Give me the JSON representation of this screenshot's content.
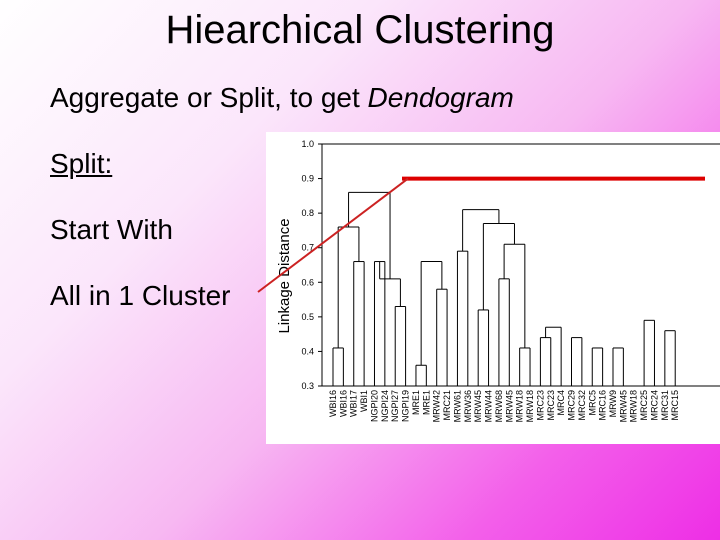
{
  "slide": {
    "title": "Hiearchical Clustering",
    "subtitle_main": "Aggregate or Split, to get ",
    "subtitle_em": "Dendogram",
    "bullets": [
      "Split:",
      "Start With",
      "All in 1 Cluster"
    ]
  },
  "chart_data": {
    "type": "dendrogram",
    "ylabel": "Linkage Distance",
    "ylim": [
      0.3,
      1.0
    ],
    "yticks": [
      1.0,
      0.9,
      0.8,
      0.7,
      0.6,
      0.5,
      0.4,
      0.3
    ],
    "ytick_labels": [
      "1.0",
      "0.9",
      "0.8",
      "0.7",
      "0.6",
      "0.5",
      "0.4",
      "0.3"
    ],
    "leaves": [
      "WBI16",
      "WBI16",
      "WBI17",
      "WBI1",
      "NGPI20",
      "NGPI24",
      "NGPI27",
      "NGPI19",
      "MRE1",
      "MRE1",
      "MRW42",
      "MRC21",
      "MRW61",
      "MRW36",
      "MRW45",
      "MRW44",
      "MRW68",
      "MRW45",
      "MRW18",
      "MRW18",
      "MRC23",
      "MRC23",
      "MRC4",
      "MRC29",
      "MRC32",
      "MRC5",
      "MRC16",
      "MRW9",
      "MRW45",
      "MRW18",
      "MRC25",
      "MRC24",
      "MRC31",
      "MRC15"
    ],
    "links": [
      {
        "left": 0,
        "right": 1,
        "height": 0.41
      },
      {
        "left": 2,
        "right": 3,
        "height": 0.66
      },
      {
        "left": 34,
        "right": 35,
        "height": 0.76
      },
      {
        "left": 4,
        "right": 5,
        "height": 0.66
      },
      {
        "left": 6,
        "right": 7,
        "height": 0.53
      },
      {
        "left": 37,
        "right": 38,
        "height": 0.61
      },
      {
        "left": 36,
        "right": 39,
        "height": 0.86
      },
      {
        "left": 8,
        "right": 9,
        "height": 0.36
      },
      {
        "left": 10,
        "right": 11,
        "height": 0.58
      },
      {
        "left": 41,
        "right": 42,
        "height": 0.66
      },
      {
        "left": 12,
        "right": 13,
        "height": 0.69
      },
      {
        "left": 14,
        "right": 15,
        "height": 0.52
      },
      {
        "left": 18,
        "right": 19,
        "height": 0.41
      },
      {
        "left": 16,
        "right": 17,
        "height": 0.61
      },
      {
        "left": 47,
        "right": 46,
        "height": 0.71
      },
      {
        "left": 45,
        "right": 48,
        "height": 0.77
      },
      {
        "left": 44,
        "right": 49,
        "height": 0.81
      },
      {
        "left": 20,
        "right": 21,
        "height": 0.44
      },
      {
        "left": 51,
        "right": 22,
        "height": 0.47
      },
      {
        "left": 23,
        "right": 24,
        "height": 0.44
      },
      {
        "left": 25,
        "right": 26,
        "height": 0.41
      },
      {
        "left": 54,
        "right": 55,
        "height": 0.53
      },
      {
        "left": 53,
        "right": 56,
        "height": 0.56
      },
      {
        "left": 27,
        "right": 28,
        "height": 0.41
      },
      {
        "left": 58,
        "right": 29,
        "height": 0.45
      },
      {
        "left": 30,
        "right": 31,
        "height": 0.49
      },
      {
        "left": 32,
        "right": 33,
        "height": 0.46
      },
      {
        "left": 60,
        "right": 61,
        "height": 0.51
      },
      {
        "left": 59,
        "right": 62,
        "height": 0.67
      },
      {
        "left": 57,
        "right": 63,
        "height": 0.7
      },
      {
        "left": 52,
        "right": 64,
        "height": 0.74
      },
      {
        "left": 50,
        "right": 65,
        "height": 0.84
      },
      {
        "left": 43,
        "right": 66,
        "height": 0.9
      },
      {
        "left": 40,
        "right": 67,
        "height": 1.0
      }
    ],
    "cut_height": 0.9
  },
  "colors": {
    "cut_line": "#dd0000",
    "pointer": "#cc2222",
    "tree": "#000000"
  }
}
